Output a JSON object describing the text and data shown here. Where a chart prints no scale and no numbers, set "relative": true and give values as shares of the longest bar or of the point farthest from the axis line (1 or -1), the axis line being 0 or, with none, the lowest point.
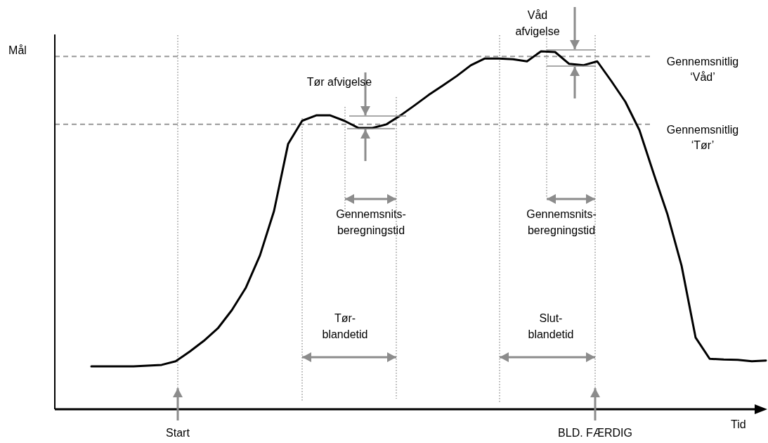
{
  "chart_data": {
    "type": "line",
    "relative": true,
    "grid": "x",
    "xlabel": "Tid",
    "categories": [
      null,
      null,
      null,
      null,
      null,
      null,
      null,
      null,
      null,
      null,
      null,
      null,
      null,
      null,
      null,
      null,
      null,
      null,
      null,
      null,
      null,
      null,
      null,
      null,
      null,
      null,
      null,
      null,
      null,
      null,
      null,
      null,
      null,
      null,
      null,
      null,
      null,
      null,
      null,
      null,
      null,
      null,
      null,
      null,
      null,
      null,
      null,
      null,
      null
    ],
    "series": [
      {
        "color": "#000000",
        "values": [
          0.12,
          0.12,
          0.12,
          0.12,
          0.122,
          0.124,
          0.134,
          0.161,
          0.191,
          0.226,
          0.277,
          0.34,
          0.43,
          0.554,
          0.741,
          0.806,
          0.821,
          0.821,
          0.806,
          0.786,
          0.786,
          0.796,
          0.821,
          0.849,
          0.878,
          0.904,
          0.931,
          0.961,
          0.98,
          0.98,
          0.978,
          0.972,
          1.0,
          0.998,
          0.965,
          0.961,
          0.972,
          0.917,
          0.859,
          0.78,
          0.66,
          0.544,
          0.401,
          0.2,
          0.141,
          0.139,
          0.138,
          0.134,
          0.136
        ]
      }
    ],
    "ref_lines": [
      {
        "axis": "y",
        "value": 0.986,
        "label": "Gennemsnitlig ‘Våd’",
        "color": "#999999",
        "line_style": "dashed"
      },
      {
        "axis": "y",
        "value": 0.796,
        "label": "Gennemsnitlig ‘Tør’",
        "color": "#999999",
        "line_style": "dashed"
      }
    ],
    "annotations": [
      "Mål",
      "Tør afvigelse",
      "Våd afvigelse",
      "Gennemsnits-beregningstid",
      "Gennemsnits-beregningstid",
      "Tør-blandetid",
      "Slut-blandetid",
      "Start",
      "BLD. FÆRDIG"
    ]
  }
}
